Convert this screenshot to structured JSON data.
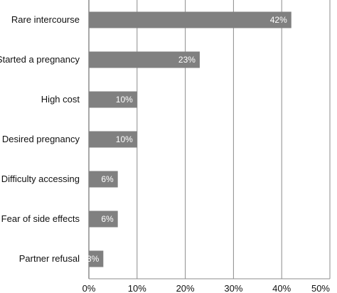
{
  "chart_data": {
    "type": "bar",
    "orientation": "horizontal",
    "title": "",
    "xlabel": "",
    "ylabel": "",
    "categories": [
      "Rare intercourse",
      "Started a pregnancy",
      "High cost",
      "Desired pregnancy",
      "Difficulty accessing",
      "Fear of side effects",
      "Partner refusal"
    ],
    "values": [
      42,
      23,
      10,
      10,
      6,
      6,
      3
    ],
    "data_labels": [
      "42%",
      "23%",
      "10%",
      "10%",
      "6%",
      "6%",
      "3%"
    ],
    "xlim": [
      0,
      50
    ],
    "xticks": [
      0,
      10,
      20,
      30,
      40,
      50
    ],
    "xtick_labels": [
      "0%",
      "10%",
      "20%",
      "30%",
      "40%",
      "50%"
    ],
    "grid": "vertical",
    "legend": "none",
    "bar_color": "#808080",
    "grid_color": "#8c8c8c",
    "label_color": "#ffffff"
  }
}
